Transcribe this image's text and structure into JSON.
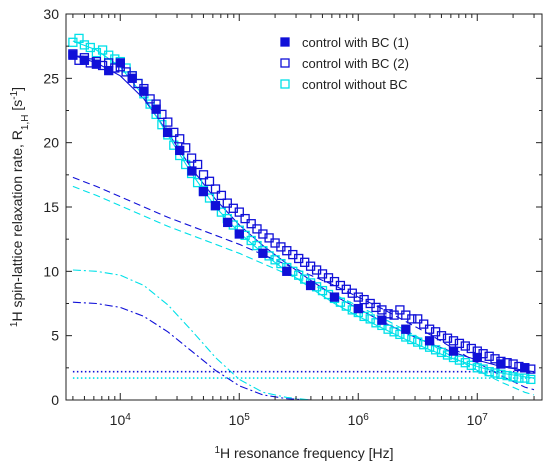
{
  "chart_data": {
    "type": "scatter",
    "xlabel": {
      "pre": "1",
      "main": "H resonance frequency [Hz]"
    },
    "ylabel": {
      "pre": "1",
      "main": "H spin-lattice relaxation rate, R",
      "sub": "1,H",
      "post": " [s",
      "sup": "-1",
      "end": "]"
    },
    "x_scale": "log",
    "xlim": [
      3500,
      35000000
    ],
    "ylim": [
      0,
      30
    ],
    "x_ticks": [
      {
        "value": 10000,
        "base": "10",
        "exp": "4"
      },
      {
        "value": 100000,
        "base": "10",
        "exp": "5"
      },
      {
        "value": 1000000,
        "base": "10",
        "exp": "6"
      },
      {
        "value": 10000000,
        "base": "10",
        "exp": "7"
      }
    ],
    "y_ticks": [
      0,
      5,
      10,
      15,
      20,
      25,
      30
    ],
    "grid": false,
    "legend_position": "top-right",
    "series": [
      {
        "name": "control with BC (1)",
        "marker": "filled-square",
        "color": "#1010d8",
        "x": [
          4000,
          5000,
          6300,
          8000,
          10000,
          12600,
          15800,
          20000,
          25000,
          31600,
          40000,
          50000,
          63000,
          80000,
          100000,
          158000,
          251000,
          398000,
          631000,
          1000000,
          1580000,
          2510000,
          3980000,
          6310000,
          10000000,
          15800000,
          25100000
        ],
        "y": [
          26.8,
          26.4,
          26.1,
          25.6,
          26.2,
          25.0,
          24.0,
          22.6,
          20.8,
          19.4,
          17.8,
          16.2,
          15.1,
          13.8,
          12.9,
          11.4,
          10.0,
          8.9,
          8.0,
          7.1,
          6.2,
          5.5,
          4.6,
          3.8,
          3.3,
          2.8,
          2.5
        ]
      },
      {
        "name": "control with BC (2)",
        "marker": "open-square",
        "color": "#1010d8",
        "x": [
          4000,
          4500,
          5000,
          5600,
          6300,
          7100,
          8000,
          9000,
          10000,
          11200,
          12600,
          14100,
          15800,
          17800,
          20000,
          22400,
          25100,
          28200,
          31600,
          35500,
          39800,
          44700,
          50100,
          56200,
          63100,
          70800,
          79400,
          89100,
          100000,
          112000,
          126000,
          141000,
          158000,
          178000,
          200000,
          224000,
          251000,
          282000,
          316000,
          355000,
          398000,
          447000,
          501000,
          562000,
          631000,
          708000,
          794000,
          891000,
          1000000,
          1120000,
          1260000,
          1410000,
          1580000,
          1780000,
          2000000,
          2240000,
          2510000,
          2820000,
          3160000,
          3550000,
          3980000,
          4470000,
          5010000,
          5620000,
          6310000,
          7080000,
          7940000,
          8910000,
          10000000,
          11200000,
          12600000,
          14100000,
          15800000,
          17800000,
          20000000,
          22400000,
          25100000,
          28200000
        ],
        "y": [
          26.9,
          26.4,
          26.6,
          26.2,
          26.3,
          26.0,
          26.2,
          25.8,
          25.9,
          25.5,
          25.2,
          24.6,
          24.2,
          23.4,
          23.0,
          22.2,
          21.6,
          20.8,
          20.3,
          19.6,
          18.8,
          18.3,
          17.5,
          17.0,
          16.4,
          15.9,
          15.3,
          14.9,
          14.6,
          14.1,
          13.7,
          13.3,
          12.9,
          12.6,
          12.2,
          11.9,
          11.6,
          11.3,
          11.0,
          10.7,
          10.4,
          10.1,
          9.8,
          9.5,
          9.2,
          8.9,
          8.6,
          8.3,
          8.0,
          7.8,
          7.5,
          7.2,
          7.0,
          6.7,
          6.6,
          7.0,
          6.6,
          6.3,
          6.3,
          5.9,
          5.5,
          5.3,
          5.0,
          4.8,
          4.6,
          4.4,
          4.2,
          4.0,
          3.8,
          3.6,
          3.4,
          3.2,
          3.0,
          2.9,
          2.8,
          2.6,
          2.5,
          2.4
        ]
      },
      {
        "name": "control without BC",
        "marker": "open-square",
        "color": "#00e0e8",
        "x": [
          4000,
          4500,
          5000,
          5600,
          6300,
          7100,
          8000,
          9000,
          10000,
          11200,
          12600,
          14100,
          15800,
          17800,
          20000,
          22400,
          25100,
          28200,
          31600,
          35500,
          39800,
          44700,
          50100,
          56200,
          63100,
          70800,
          79400,
          89100,
          100000,
          112000,
          126000,
          141000,
          158000,
          178000,
          200000,
          224000,
          251000,
          282000,
          316000,
          355000,
          398000,
          447000,
          501000,
          562000,
          631000,
          708000,
          794000,
          891000,
          1000000,
          1120000,
          1260000,
          1410000,
          1580000,
          1780000,
          2000000,
          2240000,
          2510000,
          2820000,
          3160000,
          3550000,
          3980000,
          4470000,
          5010000,
          5620000,
          6310000,
          7080000,
          7940000,
          8910000,
          10000000,
          11200000,
          12600000,
          14100000,
          15800000,
          17800000,
          20000000,
          22400000,
          25100000,
          28200000
        ],
        "y": [
          27.8,
          28.1,
          27.6,
          27.4,
          27.0,
          27.2,
          26.8,
          26.5,
          26.3,
          25.8,
          25.2,
          24.6,
          23.8,
          23.0,
          22.2,
          21.4,
          20.6,
          19.8,
          19.0,
          18.3,
          17.6,
          16.9,
          16.3,
          15.7,
          15.1,
          14.6,
          14.1,
          13.6,
          13.2,
          12.8,
          12.4,
          12.0,
          11.6,
          11.2,
          10.9,
          10.6,
          10.3,
          10.0,
          9.7,
          9.4,
          9.1,
          8.8,
          8.5,
          8.2,
          7.9,
          7.6,
          7.3,
          7.0,
          6.8,
          6.5,
          6.3,
          6.0,
          5.8,
          5.5,
          5.3,
          5.1,
          4.9,
          4.7,
          4.5,
          4.3,
          4.1,
          3.9,
          3.7,
          3.5,
          3.3,
          3.1,
          2.9,
          2.7,
          2.5,
          2.4,
          2.2,
          2.1,
          2.0,
          1.9,
          1.8,
          1.7,
          1.7,
          1.6
        ]
      }
    ],
    "fit_curves": [
      {
        "style": "solid",
        "color": "#1010d8",
        "x": [
          4000,
          6300,
          10000,
          15800,
          25100,
          39800,
          63100,
          100000,
          158000,
          251000,
          398000,
          631000,
          1000000,
          1580000,
          2510000,
          3980000,
          6310000,
          10000000,
          15800000,
          25100000,
          30000000
        ],
        "y": [
          26.8,
          26.2,
          25.2,
          23.4,
          20.8,
          18.0,
          15.6,
          13.6,
          12.0,
          10.6,
          9.3,
          8.1,
          7.1,
          6.1,
          5.2,
          4.4,
          3.7,
          3.1,
          2.6,
          2.3,
          2.2
        ]
      },
      {
        "style": "solid",
        "color": "#00e0e8",
        "x": [
          4000,
          6300,
          10000,
          15800,
          25100,
          39800,
          63100,
          100000,
          158000,
          251000,
          398000,
          631000,
          1000000,
          1580000,
          2510000,
          3980000,
          6310000,
          10000000,
          15800000,
          25100000,
          30000000
        ],
        "y": [
          27.9,
          27.2,
          25.9,
          23.6,
          20.6,
          17.6,
          15.0,
          13.0,
          11.4,
          10.0,
          8.7,
          7.5,
          6.5,
          5.6,
          4.7,
          3.9,
          3.2,
          2.6,
          2.1,
          1.8,
          1.7
        ]
      },
      {
        "style": "dashed",
        "color": "#1010d8",
        "x": [
          4000,
          6300,
          10000,
          15800,
          25100,
          39800,
          63100,
          100000,
          158000,
          251000,
          398000,
          631000,
          1000000,
          1580000,
          2510000,
          3980000,
          6310000,
          10000000,
          15800000,
          25100000,
          30000000
        ],
        "y": [
          17.3,
          16.6,
          15.8,
          15.0,
          14.2,
          13.5,
          12.8,
          12.1,
          11.3,
          10.5,
          9.7,
          8.9,
          8.0,
          7.1,
          6.1,
          5.1,
          4.0,
          2.9,
          1.9,
          1.0,
          0.8
        ]
      },
      {
        "style": "dashed",
        "color": "#00e0e8",
        "x": [
          4000,
          6300,
          10000,
          15800,
          25100,
          39800,
          63100,
          100000,
          158000,
          251000,
          398000,
          631000,
          1000000,
          1580000,
          2510000,
          3980000,
          6310000,
          10000000,
          15800000,
          25100000,
          30000000
        ],
        "y": [
          16.6,
          15.9,
          15.1,
          14.3,
          13.5,
          12.8,
          12.1,
          11.4,
          10.6,
          9.8,
          9.0,
          8.2,
          7.3,
          6.4,
          5.4,
          4.4,
          3.3,
          2.3,
          1.4,
          0.6,
          0.4
        ]
      },
      {
        "style": "dashdot",
        "color": "#1010d8",
        "x": [
          4000,
          6300,
          10000,
          15800,
          25100,
          39800,
          63100,
          100000,
          158000,
          251000,
          398000,
          631000
        ],
        "y": [
          7.6,
          7.5,
          7.2,
          6.5,
          5.3,
          3.8,
          2.3,
          1.1,
          0.4,
          0.1,
          0.0,
          0.0
        ]
      },
      {
        "style": "dashdot",
        "color": "#00e0e8",
        "x": [
          4000,
          6300,
          10000,
          15800,
          25100,
          39800,
          63100,
          100000,
          158000,
          251000,
          398000,
          631000
        ],
        "y": [
          10.1,
          10.0,
          9.7,
          8.9,
          7.4,
          5.4,
          3.3,
          1.6,
          0.6,
          0.2,
          0.0,
          0.0
        ]
      },
      {
        "style": "dotted",
        "color": "#1010d8",
        "x": [
          4000,
          30000000
        ],
        "y": [
          2.2,
          2.2
        ]
      },
      {
        "style": "dotted",
        "color": "#00e0e8",
        "x": [
          4000,
          30000000
        ],
        "y": [
          1.7,
          1.7
        ]
      }
    ]
  }
}
